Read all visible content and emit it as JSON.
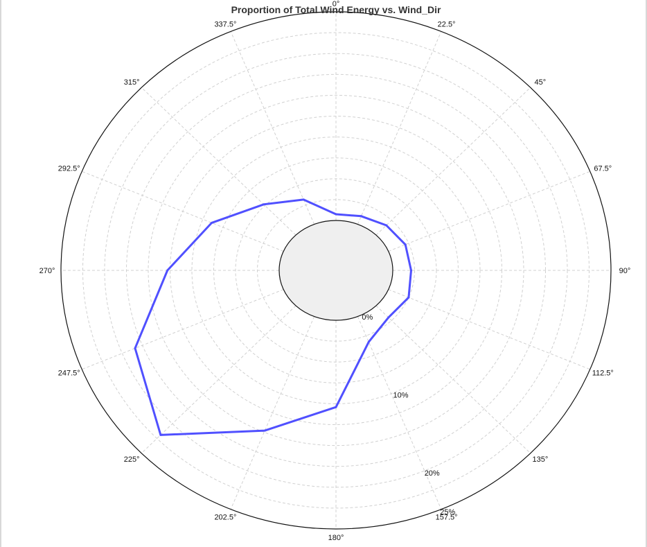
{
  "chart_data": {
    "type": "polar-line",
    "title": "Proportion of Total Wind Energy vs. Wind_Dir",
    "direction_labels": [
      "0°",
      "22.5°",
      "45°",
      "67.5°",
      "90°",
      "112.5°",
      "135°",
      "157.5°",
      "180°",
      "202.5°",
      "225°",
      "247.5°",
      "270°",
      "292.5°",
      "315°",
      "337.5°"
    ],
    "radial_tick_labels": [
      "0%",
      "10%",
      "20%",
      "25%"
    ],
    "radial_range": [
      0,
      25
    ],
    "grid": true,
    "series": [
      {
        "color": "#5050ff",
        "directions": [
          0,
          22.5,
          45,
          67.5,
          90,
          112.5,
          135,
          157.5,
          180,
          202.5,
          225,
          247.5,
          270,
          292.5,
          315,
          337.5
        ],
        "values": [
          0.75,
          1.05,
          1.65,
          2.1,
          2.1,
          2.5,
          2.0,
          3.3,
          10.4,
          14.8,
          21.9,
          18.4,
          12.8,
          8.9,
          5.2,
          3.2
        ]
      }
    ]
  }
}
